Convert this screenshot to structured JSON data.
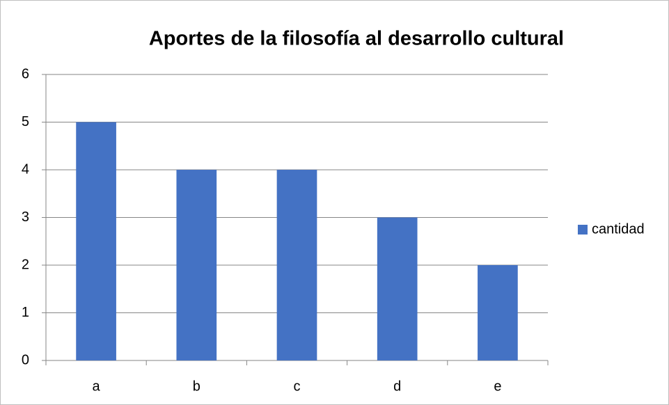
{
  "chart_data": {
    "type": "bar",
    "title": "Aportes de la filosofía al desarrollo cultural",
    "categories": [
      "a",
      "b",
      "c",
      "d",
      "e"
    ],
    "series": [
      {
        "name": "cantidad",
        "color": "#4472c4",
        "values": [
          5,
          4,
          4,
          3,
          2
        ]
      }
    ],
    "ylim": [
      0,
      6
    ],
    "yticks": [
      0,
      1,
      2,
      3,
      4,
      5,
      6
    ],
    "grid": true,
    "legend": "right"
  }
}
